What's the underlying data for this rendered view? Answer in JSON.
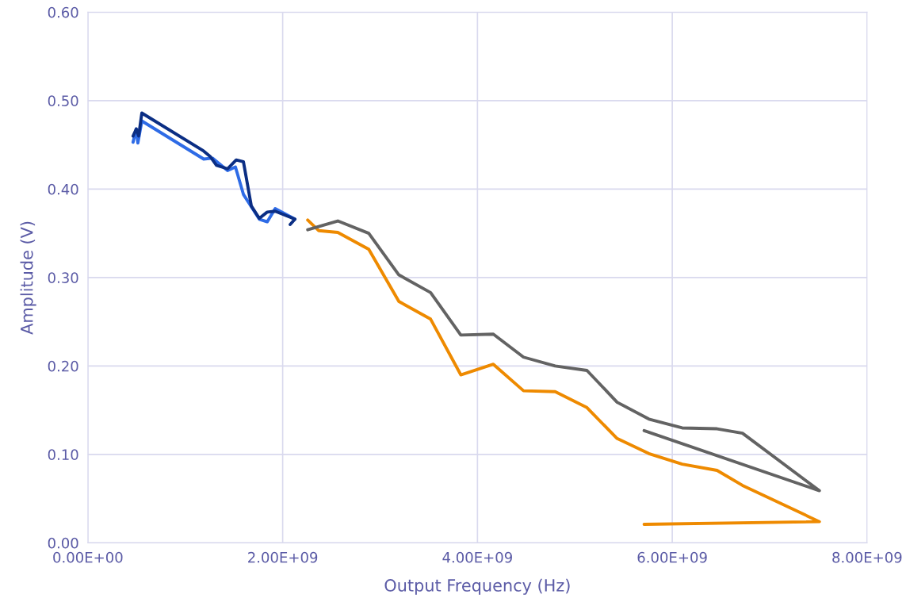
{
  "chart_data": {
    "type": "line",
    "xlabel": "Output Frequency (Hz)",
    "ylabel": "Amplitude (V)",
    "xlim": [
      0,
      8000000000
    ],
    "ylim": [
      0,
      0.6
    ],
    "xticks": [
      {
        "value": 0,
        "label": "0.00E+00"
      },
      {
        "value": 2000000000,
        "label": "2.00E+09"
      },
      {
        "value": 4000000000,
        "label": "4.00E+09"
      },
      {
        "value": 6000000000,
        "label": "6.00E+09"
      },
      {
        "value": 8000000000,
        "label": "8.00E+09"
      }
    ],
    "yticks": [
      {
        "value": 0,
        "label": "0.00"
      },
      {
        "value": 0.1,
        "label": "0.10"
      },
      {
        "value": 0.2,
        "label": "0.20"
      },
      {
        "value": 0.3,
        "label": "0.30"
      },
      {
        "value": 0.4,
        "label": "0.40"
      },
      {
        "value": 0.5,
        "label": "0.50"
      },
      {
        "value": 0.6,
        "label": "0.60"
      }
    ],
    "grid": true,
    "legend": false,
    "marker": "none",
    "line_style": "solid",
    "series": [
      {
        "color": "#2e6be6",
        "x": [
          464000000,
          497000000,
          513000000,
          554000000,
          1189000000,
          1279000000,
          1434000000,
          1515000000,
          1597000000,
          1760000000,
          1841000000,
          1923000000,
          2126000000
        ],
        "values": [
          0.453,
          0.468,
          0.452,
          0.477,
          0.434,
          0.435,
          0.421,
          0.425,
          0.394,
          0.366,
          0.363,
          0.378,
          0.366
        ]
      },
      {
        "color": "#0b2e84",
        "x": [
          464000000,
          497000000,
          521000000,
          554000000,
          1189000000,
          1255000000,
          1320000000,
          1434000000,
          1523000000,
          1597000000,
          1678000000,
          1760000000,
          1841000000,
          1923000000,
          2126000000,
          2077000000
        ],
        "values": [
          0.46,
          0.468,
          0.46,
          0.486,
          0.443,
          0.437,
          0.427,
          0.423,
          0.433,
          0.431,
          0.381,
          0.367,
          0.374,
          0.375,
          0.366,
          0.36
        ]
      },
      {
        "color": "#ee8a00",
        "x": [
          2257000000,
          2371000000,
          2566000000,
          2884000000,
          3193000000,
          3519000000,
          3829000000,
          4163000000,
          4473000000,
          4798000000,
          5124000000,
          5434000000,
          5760000000,
          6102000000,
          6460000000,
          6721000000,
          7511000000,
          5711000000
        ],
        "values": [
          0.365,
          0.353,
          0.351,
          0.332,
          0.273,
          0.253,
          0.19,
          0.202,
          0.172,
          0.171,
          0.153,
          0.118,
          0.101,
          0.089,
          0.082,
          0.065,
          0.024,
          0.021
        ]
      },
      {
        "color": "#636363",
        "x": [
          2257000000,
          2566000000,
          2884000000,
          3193000000,
          3519000000,
          3829000000,
          4163000000,
          4473000000,
          4798000000,
          5124000000,
          5434000000,
          5760000000,
          6102000000,
          6460000000,
          6721000000,
          7511000000,
          5711000000
        ],
        "values": [
          0.354,
          0.364,
          0.35,
          0.303,
          0.283,
          0.235,
          0.236,
          0.21,
          0.2,
          0.195,
          0.159,
          0.14,
          0.13,
          0.129,
          0.124,
          0.059,
          0.127
        ]
      }
    ]
  }
}
